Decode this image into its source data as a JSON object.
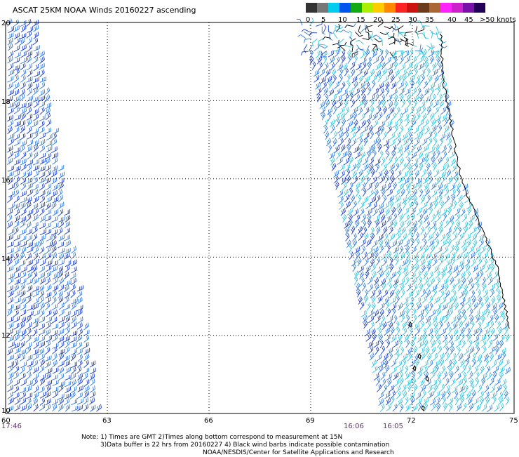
{
  "title": "ASCAT 25KM NOAA Winds 20160227 ascending",
  "colorbar": {
    "labels": [
      "0",
      "5",
      "10",
      "15",
      "20",
      "25",
      "30",
      "35",
      "40",
      "45",
      ">50 knots"
    ],
    "colors": [
      "#333333",
      "#777777",
      "#00ccee",
      "#0055ee",
      "#11aa11",
      "#aaee00",
      "#ffcc00",
      "#ff8800",
      "#ff2222",
      "#cc1111",
      "#6b3b1b",
      "#aa6633",
      "#ff22ff",
      "#cc22cc",
      "#7711aa",
      "#220055"
    ]
  },
  "map": {
    "lon_range": [
      60,
      75
    ],
    "lat_range": [
      10,
      20
    ],
    "lon_ticks": [
      "60",
      "63",
      "66",
      "69",
      "72",
      "75"
    ],
    "lat_ticks": [
      "20",
      "18",
      "16",
      "14",
      "12",
      "10"
    ],
    "grid": "dotted",
    "barb_colors": {
      "dark_blue": "#1a3ec8",
      "blue": "#2f7ae0",
      "cyan": "#2ec4dd",
      "contaminated": "#000000",
      "coast": "#000000"
    }
  },
  "times": {
    "left_pass": "17:46",
    "right_pass_a": "16:06",
    "right_pass_b": "16:05"
  },
  "notes": {
    "line1": "Note: 1) Times are GMT 2)Times along bottom correspond to measurement at 15N",
    "line2": "3)Data buffer is 22 hrs from 20160227 4) Black wind barbs indicate possible contamination",
    "line3": "NOAA/NESDIS/Center for Satellite Applications and Research"
  }
}
